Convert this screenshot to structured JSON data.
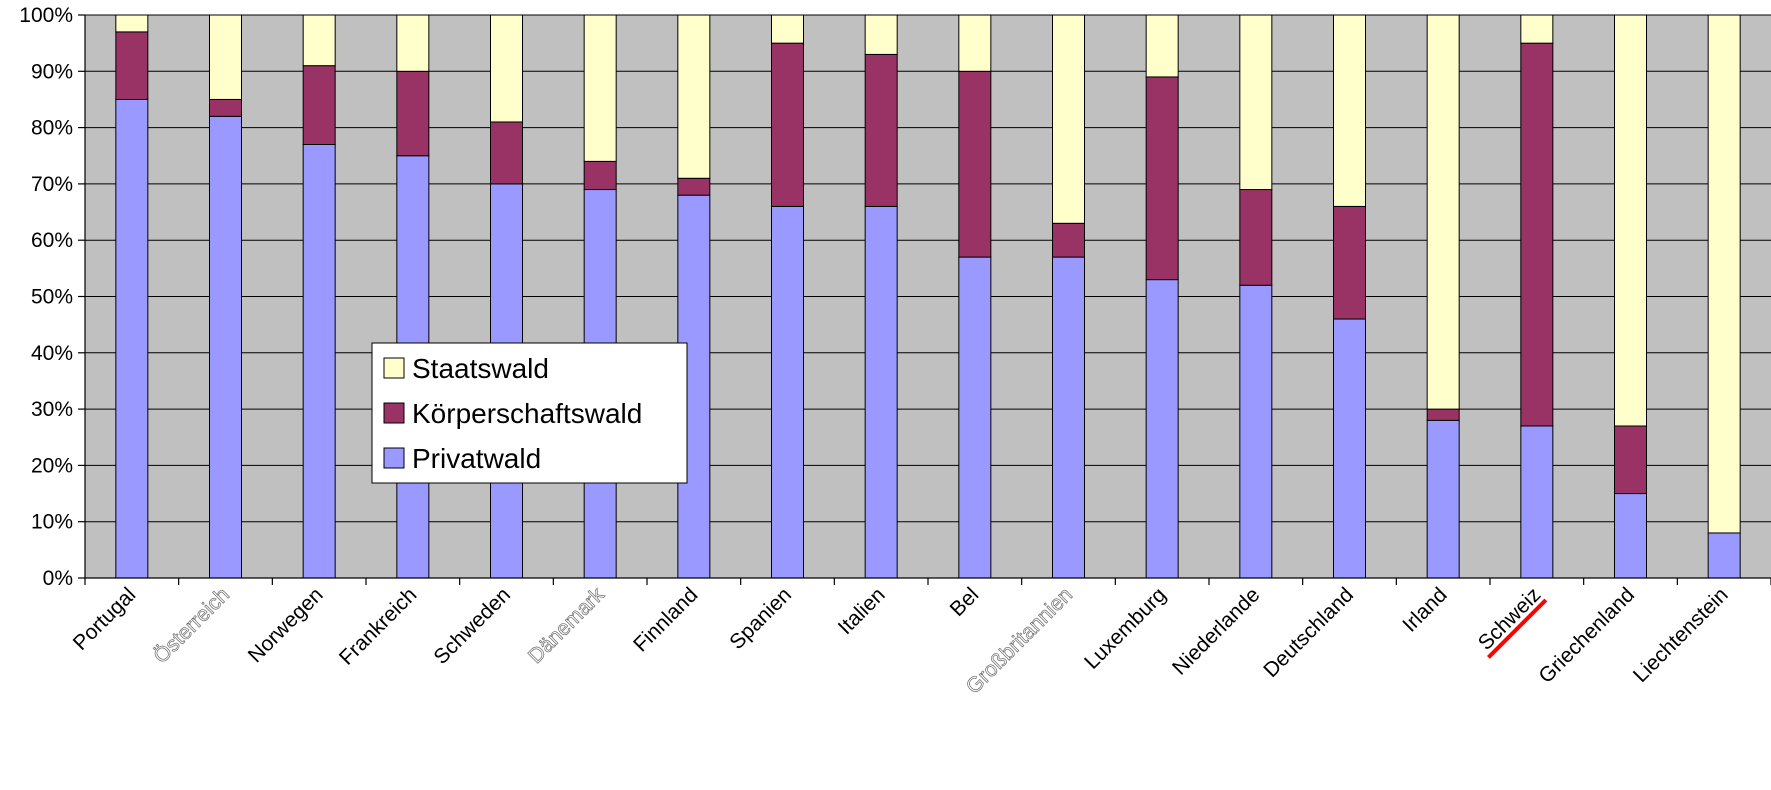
{
  "chart_data": {
    "type": "bar",
    "stacked": true,
    "normalized": true,
    "categories": [
      "Portugal",
      "Österreich",
      "Norwegen",
      "Frankreich",
      "Schweden",
      "Dänemark",
      "Finnland",
      "Spanien",
      "Italien",
      "Belgien",
      "Großbritannien",
      "Luxemburg",
      "Niederlande",
      "Deutschland",
      "Irland",
      "Schweiz",
      "Griechenland",
      "Liechtenstein"
    ],
    "category_display": [
      "Portugal",
      "Österreich",
      "Norwegen",
      "Frankreich",
      "Schweden",
      "Dänemark",
      "Finnland",
      "Spanien",
      "Italien",
      "Bel",
      "Großbritannien",
      "Luxemburg",
      "Niederlande",
      "Deutschland",
      "Irland",
      "Schweiz",
      "Griechenland",
      "Liechtenstein"
    ],
    "faded_categories": [
      "Österreich",
      "Dänemark",
      "Großbritannien"
    ],
    "highlighted_category": "Schweiz",
    "highlight_color": "#ff0000",
    "series": [
      {
        "name": "Privatwald",
        "color": "#9999ff",
        "values": [
          85,
          82,
          77,
          75,
          70,
          69,
          68,
          66,
          66,
          57,
          57,
          53,
          52,
          46,
          28,
          27,
          15,
          8
        ]
      },
      {
        "name": "Körperschaftswald",
        "color": "#993366",
        "values": [
          12,
          3,
          14,
          15,
          11,
          5,
          3,
          29,
          27,
          33,
          6,
          36,
          17,
          20,
          2,
          68,
          12,
          0
        ]
      },
      {
        "name": "Staatswald",
        "color": "#ffffcc",
        "values": [
          3,
          15,
          9,
          10,
          19,
          26,
          29,
          5,
          7,
          10,
          37,
          11,
          31,
          34,
          70,
          5,
          73,
          92
        ]
      }
    ],
    "legend_order": [
      "Staatswald",
      "Körperschaftswald",
      "Privatwald"
    ],
    "yticks": [
      "0%",
      "10%",
      "20%",
      "30%",
      "40%",
      "50%",
      "60%",
      "70%",
      "80%",
      "90%",
      "100%"
    ],
    "ylim": [
      0,
      100
    ],
    "grid": true,
    "plot_background": "#c0c0c0",
    "legend_position": "center-left",
    "title": "",
    "xlabel": "",
    "ylabel": ""
  }
}
